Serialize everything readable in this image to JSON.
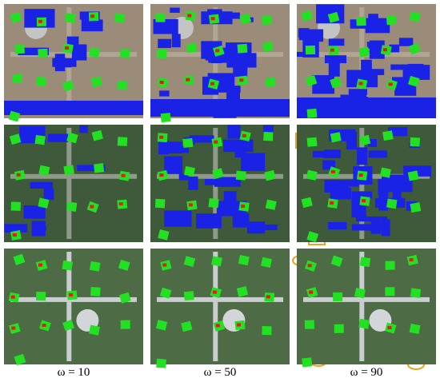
{
  "captions": [
    "ω = 10",
    "ω = 50",
    "ω = 90"
  ]
}
